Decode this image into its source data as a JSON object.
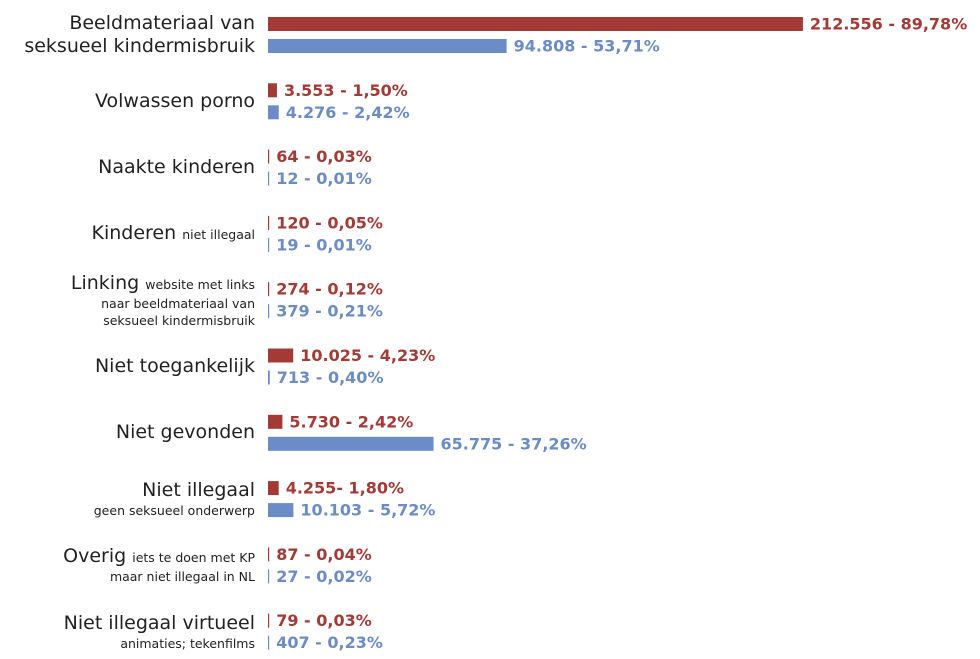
{
  "chart_data": {
    "type": "bar",
    "orientation": "horizontal",
    "categories": [
      "Beeldmateriaal van seksueel kindermisbruik",
      "Volwassen porno",
      "Naakte kinderen",
      "Kinderen",
      "Linking",
      "Niet toegankelijk",
      "Niet gevonden",
      "Niet illegaal",
      "Overig",
      "Niet illegaal virtueel"
    ],
    "category_notes": [
      null,
      null,
      null,
      [
        "niet illegaal"
      ],
      [
        "website met links",
        "naar beeldmateriaal van",
        "seksueel kindermisbruik"
      ],
      null,
      null,
      [
        "geen seksueel onderwerp"
      ],
      [
        "iets te doen met KP",
        "maar niet illegaal in NL"
      ],
      [
        "animaties; tekenfilms"
      ]
    ],
    "note_inline": [
      false,
      false,
      false,
      true,
      true,
      false,
      false,
      false,
      true,
      false
    ],
    "xlim": [
      0,
      240000
    ],
    "series": [
      {
        "color": "#a33a36",
        "values": [
          212556,
          3553,
          64,
          120,
          274,
          10025,
          5730,
          4255,
          87,
          79
        ],
        "value_labels": [
          "212.556 - 89,78%",
          "3.553 - 1,50%",
          "64 - 0,03%",
          "120 - 0,05%",
          "274 - 0,12%",
          "10.025 - 4,23%",
          "5.730 - 2,42%",
          "4.255- 1,80%",
          "87 - 0,04%",
          "79 - 0,03%"
        ]
      },
      {
        "color": "#6b8cc7",
        "values": [
          94808,
          4276,
          12,
          19,
          379,
          713,
          65775,
          10103,
          27,
          407
        ],
        "value_labels": [
          "94.808 - 53,71%",
          "4.276 - 2,42%",
          "12 - 0,01%",
          "19 - 0,01%",
          "379 - 0,21%",
          "713 - 0,40%",
          "65.775 - 37,26%",
          "10.103 - 5,72%",
          "27 - 0,02%",
          "407 - 0,23%"
        ]
      }
    ]
  }
}
